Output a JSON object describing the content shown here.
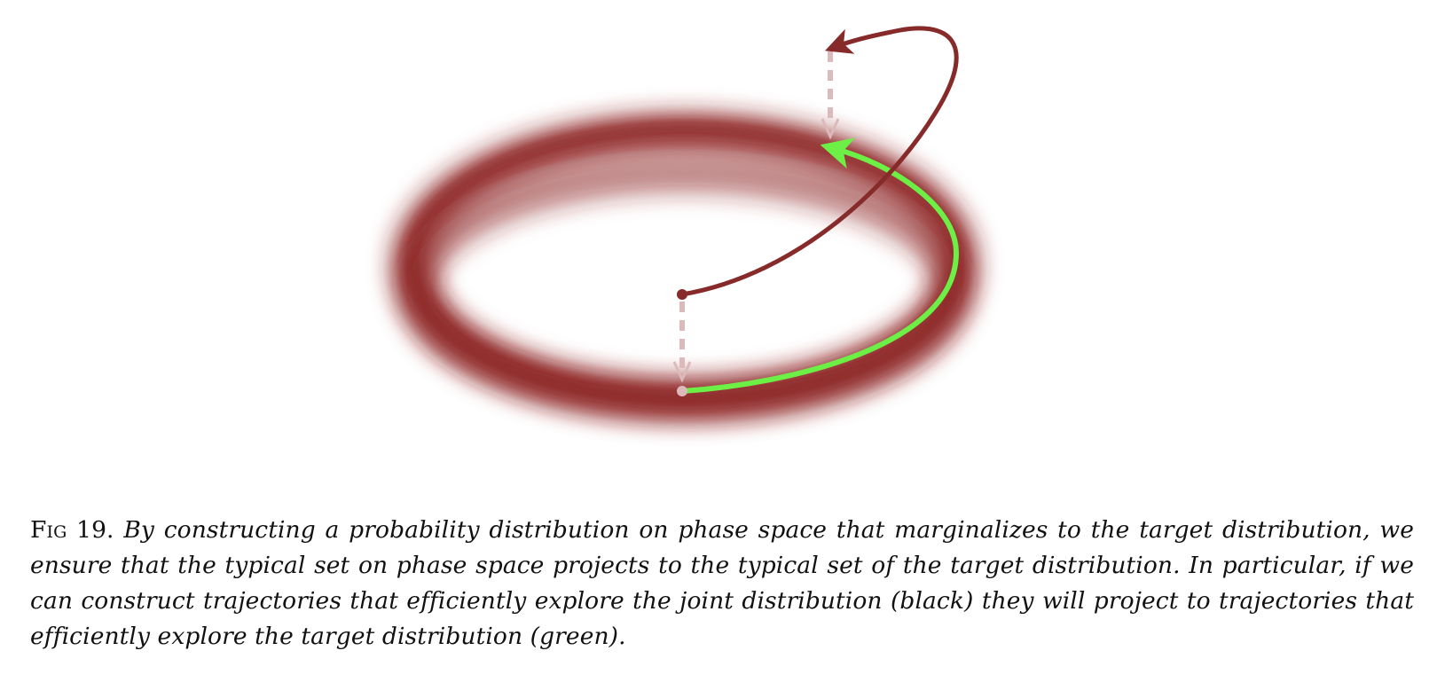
{
  "figure": {
    "colors": {
      "ring": "#8b1e1e",
      "joint_trajectory": "#862a2a",
      "target_trajectory": "#6cf046",
      "projection": "#dcbabb",
      "background": "#ffffff"
    }
  },
  "caption": {
    "label": "Fig 19.",
    "text": "By constructing a probability distribution on phase space that marginalizes to the target distribution, we ensure that the typical set on phase space projects to the typical set of the target distribution. In particular, if we can construct trajectories that efficiently explore the joint distribution (black) they will project to trajectories that efficiently explore the target distribution (green)."
  }
}
